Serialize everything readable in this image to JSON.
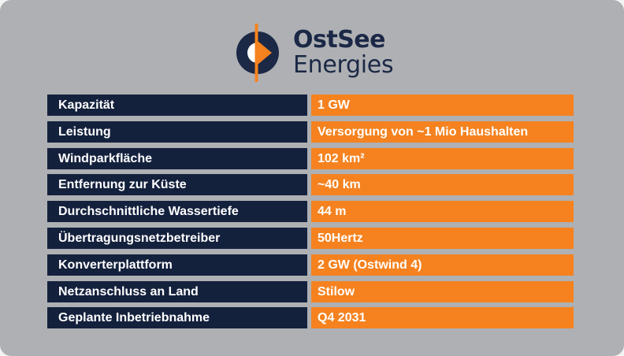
{
  "brand": {
    "name_line1": "OstSee",
    "name_line2": "Energies",
    "colors": {
      "navy": "#14213d",
      "orange": "#f5821f",
      "background": "#aeb0b3"
    },
    "logo_icon": "half-circle-arrow-logo-icon"
  },
  "specs": [
    {
      "label": "Kapazität",
      "value": "1 GW"
    },
    {
      "label": "Leistung",
      "value": "Versorgung von ~1 Mio Haushalten"
    },
    {
      "label": "Windparkfläche",
      "value": "102 km²"
    },
    {
      "label": "Entfernung zur Küste",
      "value": "~40 km"
    },
    {
      "label": "Durchschnittliche Wassertiefe",
      "value": "44 m"
    },
    {
      "label": "Übertragungsnetzbetreiber",
      "value": "50Hertz"
    },
    {
      "label": "Konverterplattform",
      "value": "2 GW (Ostwind 4)"
    },
    {
      "label": "Netzanschluss an Land",
      "value": "Stilow"
    },
    {
      "label": "Geplante Inbetriebnahme",
      "value": "Q4 2031"
    }
  ]
}
